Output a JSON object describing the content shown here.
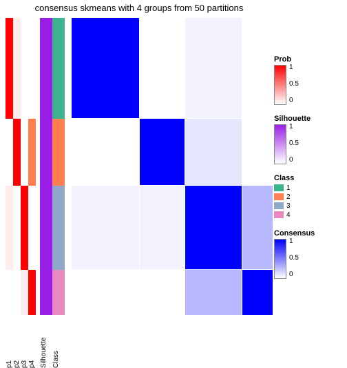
{
  "title": "consensus skmeans with 4 groups from 50 partitions",
  "colors": {
    "red": "#ff0000",
    "white": "#ffffff",
    "purple": "#9a1ee6",
    "orange": "#ff7f50",
    "teal": "#3cb38e",
    "steel": "#8fa8c8",
    "pink": "#e88abf",
    "blue": "#0000ff",
    "faint_red": "#ffecec",
    "faint_purple": "#f3e9fb",
    "faint_blue": "#f2f2ff",
    "light_blue": "#e6e6ff",
    "mid_blue": "#b8b8ff"
  },
  "group_heights": {
    "g1": 0.34,
    "g2": 0.225,
    "g3": 0.285,
    "g4": 0.15
  },
  "tracks": [
    {
      "name": "p1",
      "w": 11,
      "segs": {
        "g1": "red",
        "g2": "white",
        "g3": "faint_red",
        "g4": "white"
      }
    },
    {
      "name": "p2",
      "w": 11,
      "segs": {
        "g1": "faint_red",
        "g2": "red",
        "g3": "white",
        "g4": "white"
      }
    },
    {
      "name": "p3",
      "w": 11,
      "segs": {
        "g1": "white",
        "g2": "white",
        "g3": "red",
        "g4": "faint_red"
      }
    },
    {
      "name": "p4",
      "w": 11,
      "segs": {
        "g1": "white",
        "g2": "orange",
        "g3": "white",
        "g4": "red"
      }
    }
  ],
  "wide_tracks": [
    {
      "name": "Silhouette",
      "w": 18,
      "segs": {
        "g1": "purple",
        "g2": "purple",
        "g3": "purple",
        "g4": "purple"
      }
    },
    {
      "name": "Class",
      "w": 18,
      "segs": {
        "g1": "teal",
        "g2": "orange",
        "g3": "steel",
        "g4": "pink"
      }
    }
  ],
  "heatmap": {
    "g1": {
      "g1": "blue",
      "g2": "white",
      "g3": "faint_blue",
      "g4": "white"
    },
    "g2": {
      "g1": "white",
      "g2": "blue",
      "g3": "light_blue",
      "g4": "white"
    },
    "g3": {
      "g1": "faint_blue",
      "g2": "faint_blue",
      "g3": "blue",
      "g4": "mid_blue"
    },
    "g4": {
      "g1": "white",
      "g2": "white",
      "g3": "mid_blue",
      "g4": "blue"
    }
  },
  "legends": [
    {
      "title": "Prob",
      "type": "gradient",
      "from": "#ffffff",
      "to": "#ff0000",
      "ticks": [
        {
          "v": "1",
          "p": 0
        },
        {
          "v": "0.5",
          "p": 0.5
        },
        {
          "v": "0",
          "p": 1
        }
      ]
    },
    {
      "title": "Silhouette",
      "type": "gradient",
      "from": "#ffffff",
      "to": "#9a1ee6",
      "ticks": [
        {
          "v": "1",
          "p": 0
        },
        {
          "v": "0.5",
          "p": 0.5
        },
        {
          "v": "0",
          "p": 1
        }
      ]
    },
    {
      "title": "Class",
      "type": "discrete",
      "items": [
        {
          "c": "#3cb38e",
          "l": "1"
        },
        {
          "c": "#ff7f50",
          "l": "2"
        },
        {
          "c": "#8fa8c8",
          "l": "3"
        },
        {
          "c": "#e88abf",
          "l": "4"
        }
      ]
    },
    {
      "title": "Consensus",
      "type": "gradient",
      "from": "#ffffff",
      "to": "#0000ff",
      "ticks": [
        {
          "v": "1",
          "p": 0
        },
        {
          "v": "0.5",
          "p": 0.5
        },
        {
          "v": "0",
          "p": 1
        }
      ]
    }
  ]
}
